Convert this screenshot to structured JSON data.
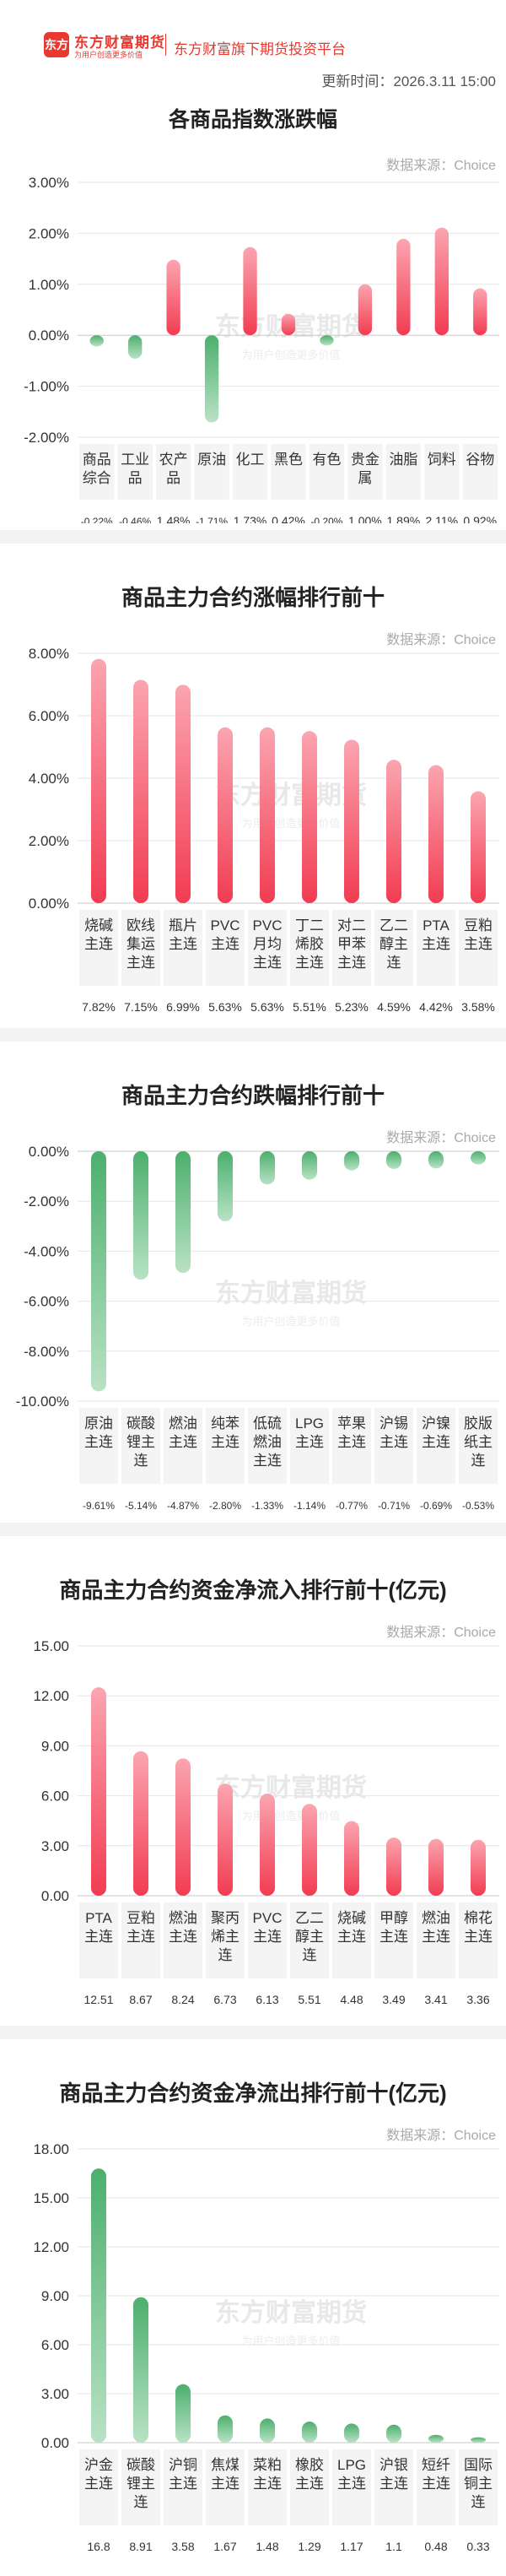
{
  "header": {
    "logo_text": "东方",
    "brand": "东方财富期货",
    "brand_sub": "为用户创造更多价值",
    "platform": "东方财富旗下期货投资平台",
    "update_time": "更新时间：2026.3.11 15:00",
    "title": "各商品指数涨跌幅"
  },
  "source_label": "数据来源：Choice",
  "watermark": {
    "main": "东方财富期货",
    "sub": "为用户创造更多价值"
  },
  "colors": {
    "up": "#f23c52",
    "up_light": "#fba5b0",
    "down": "#4caf6d",
    "down_light": "#b9e2c5",
    "label_bg": "#f4f4f4"
  },
  "sections": [
    {
      "title": ""
    },
    {
      "title": "商品主力合约涨幅排行前十"
    },
    {
      "title": "商品主力合约跌幅排行前十"
    },
    {
      "title": "商品主力合约资金净流入排行前十(亿元)"
    },
    {
      "title": "商品主力合约资金净流出排行前十(亿元)"
    }
  ],
  "chart_data": [
    {
      "type": "bar",
      "title": "各商品指数涨跌幅",
      "categories": [
        "商品\n综合",
        "工业\n品",
        "农产\n品",
        "原油",
        "化工",
        "黑色",
        "有色",
        "贵金\n属",
        "油脂",
        "饲料",
        "谷物"
      ],
      "values": [
        -0.22,
        -0.46,
        1.48,
        -1.71,
        1.73,
        0.42,
        -0.2,
        1.0,
        1.89,
        2.11,
        0.92
      ],
      "value_labels": [
        "-0.22%",
        "-0.46%",
        "1.48%",
        "-1.71%",
        "1.73%",
        "0.42%",
        "-0.20%",
        "1.00%",
        "1.89%",
        "2.11%",
        "0.92%"
      ],
      "ylim": [
        -2,
        3
      ],
      "yticks": [
        3,
        2,
        1,
        0,
        -1,
        -2
      ],
      "ytick_labels": [
        "3.00%",
        "2.00%",
        "1.00%",
        "0.00%",
        "-1.00%",
        "-2.00%"
      ],
      "grid": true
    },
    {
      "type": "bar",
      "title": "商品主力合约涨幅排行前十",
      "categories": [
        "烧碱\n主连",
        "欧线\n集运\n主连",
        "瓶片\n主连",
        "PVC\n主连",
        "PVC\n月均\n主连",
        "丁二\n烯胶\n主连",
        "对二\n甲苯\n主连",
        "乙二\n醇主\n连",
        "PTA\n主连",
        "豆粕\n主连"
      ],
      "values": [
        7.82,
        7.15,
        6.99,
        5.63,
        5.63,
        5.51,
        5.23,
        4.59,
        4.42,
        3.58
      ],
      "value_labels": [
        "7.82%",
        "7.15%",
        "6.99%",
        "5.63%",
        "5.63%",
        "5.51%",
        "5.23%",
        "4.59%",
        "4.42%",
        "3.58%"
      ],
      "ylim": [
        0,
        8
      ],
      "yticks": [
        8,
        6,
        4,
        2,
        0
      ],
      "ytick_labels": [
        "8.00%",
        "6.00%",
        "4.00%",
        "2.00%",
        "0.00%"
      ],
      "grid": true
    },
    {
      "type": "bar",
      "title": "商品主力合约跌幅排行前十",
      "categories": [
        "原油\n主连",
        "碳酸\n锂主\n连",
        "燃油\n主连",
        "纯苯\n主连",
        "低硫\n燃油\n主连",
        "LPG\n主连",
        "苹果\n主连",
        "沪锡\n主连",
        "沪镍\n主连",
        "胶版\n纸主\n连"
      ],
      "values": [
        -9.61,
        -5.14,
        -4.87,
        -2.8,
        -1.33,
        -1.14,
        -0.77,
        -0.71,
        -0.69,
        -0.53
      ],
      "value_labels": [
        "-9.61%",
        "-5.14%",
        "-4.87%",
        "-2.80%",
        "-1.33%",
        "-1.14%",
        "-0.77%",
        "-0.71%",
        "-0.69%",
        "-0.53%"
      ],
      "ylim": [
        -10,
        0
      ],
      "yticks": [
        0,
        -2,
        -4,
        -6,
        -8,
        -10
      ],
      "ytick_labels": [
        "0.00%",
        "-2.00%",
        "-4.00%",
        "-6.00%",
        "-8.00%",
        "-10.00%"
      ],
      "grid": true
    },
    {
      "type": "bar",
      "title": "商品主力合约资金净流入排行前十(亿元)",
      "categories": [
        "PTA\n主连",
        "豆粕\n主连",
        "燃油\n主连",
        "聚丙\n烯主\n连",
        "PVC\n主连",
        "乙二\n醇主\n连",
        "烧碱\n主连",
        "甲醇\n主连",
        "燃油\n主连",
        "棉花\n主连"
      ],
      "values": [
        12.51,
        8.67,
        8.24,
        6.73,
        6.13,
        5.51,
        4.48,
        3.49,
        3.41,
        3.36
      ],
      "value_labels": [
        "12.51",
        "8.67",
        "8.24",
        "6.73",
        "6.13",
        "5.51",
        "4.48",
        "3.49",
        "3.41",
        "3.36"
      ],
      "ylim": [
        0,
        15
      ],
      "yticks": [
        15,
        12,
        9,
        6,
        3,
        0
      ],
      "ytick_labels": [
        "15.00",
        "12.00",
        "9.00",
        "6.00",
        "3.00",
        "0.00"
      ],
      "grid": true
    },
    {
      "type": "bar",
      "title": "商品主力合约资金净流出排行前十(亿元)",
      "categories": [
        "沪金\n主连",
        "碳酸\n锂主\n连",
        "沪铜\n主连",
        "焦煤\n主连",
        "菜粕\n主连",
        "橡胶\n主连",
        "LPG\n主连",
        "沪银\n主连",
        "短纤\n主连",
        "国际\n铜主\n连"
      ],
      "values": [
        16.8,
        8.91,
        3.58,
        1.67,
        1.48,
        1.29,
        1.17,
        1.1,
        0.48,
        0.33
      ],
      "value_labels": [
        "16.8",
        "8.91",
        "3.58",
        "1.67",
        "1.48",
        "1.29",
        "1.17",
        "1.1",
        "0.48",
        "0.33"
      ],
      "ylim": [
        0,
        18
      ],
      "yticks": [
        18,
        15,
        12,
        9,
        6,
        3,
        0
      ],
      "ytick_labels": [
        "18.00",
        "15.00",
        "12.00",
        "9.00",
        "6.00",
        "3.00",
        "0.00"
      ],
      "grid": true
    }
  ]
}
